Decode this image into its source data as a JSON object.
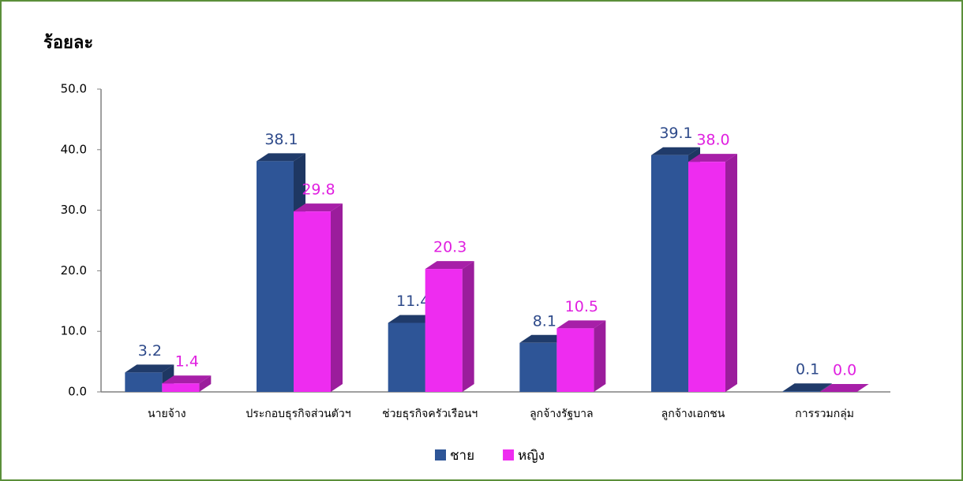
{
  "chart_data": {
    "type": "bar3d",
    "title": "ร้อยละ",
    "categories": [
      "นายจ้าง",
      "ประกอบธุรกิจส่วนตัวฯ",
      "ช่วยธุรกิจครัวเรือนฯ",
      "ลูกจ้างรัฐบาล",
      "ลูกจ้างเอกชน",
      "การรวมกลุ่ม"
    ],
    "series": [
      {
        "name": "ชาย",
        "color": "#2e5597",
        "values": [
          3.2,
          38.1,
          11.4,
          8.1,
          39.1,
          0.1
        ],
        "value_labels": [
          "3.2",
          "38.1",
          "11.4",
          "8.1",
          "39.1",
          "0.1"
        ]
      },
      {
        "name": "หญิง",
        "color": "#ee2cf0",
        "values": [
          1.4,
          29.8,
          20.3,
          10.5,
          38.0,
          0.0
        ],
        "value_labels": [
          "1.4",
          "29.8",
          "20.3",
          "10.5",
          "38.0",
          "0.0"
        ]
      }
    ],
    "ylim": [
      0,
      50
    ],
    "yticks": [
      {
        "value": 0,
        "label": "0.0"
      },
      {
        "value": 10,
        "label": "10.0"
      },
      {
        "value": 20,
        "label": "20.0"
      },
      {
        "value": 30,
        "label": "30.0"
      },
      {
        "value": 40,
        "label": "40.0"
      },
      {
        "value": 50,
        "label": "50.0"
      }
    ],
    "legend": "bottom"
  }
}
